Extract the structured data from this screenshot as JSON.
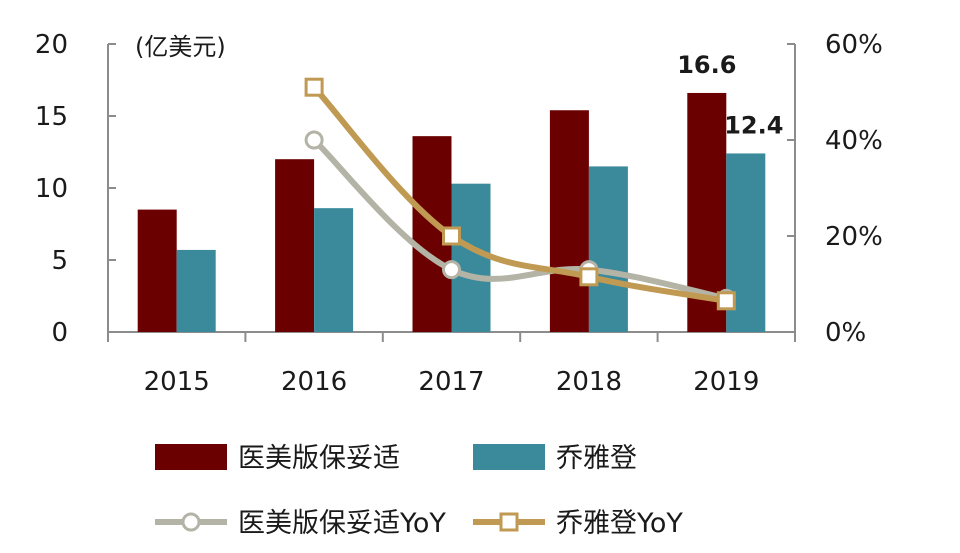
{
  "chart_data": {
    "type": "bar",
    "unit_label": "(亿美元)",
    "categories": [
      "2015",
      "2016",
      "2017",
      "2018",
      "2019"
    ],
    "y_left": {
      "min": 0,
      "max": 20,
      "ticks": [
        0,
        5,
        10,
        15,
        20
      ]
    },
    "y_right": {
      "min": 0,
      "max": 60,
      "ticks": [
        "0%",
        "20%",
        "40%",
        "60%"
      ],
      "tick_values": [
        0,
        20,
        40,
        60
      ]
    },
    "series": [
      {
        "name": "医美版保妥适",
        "kind": "bar",
        "axis": "left",
        "color": "#6b0000",
        "values": [
          8.5,
          12.0,
          13.6,
          15.4,
          16.6
        ]
      },
      {
        "name": "乔雅登",
        "kind": "bar",
        "axis": "left",
        "color": "#3a8a9c",
        "values": [
          5.7,
          8.6,
          10.3,
          11.5,
          12.4
        ]
      },
      {
        "name": "医美版保妥适YoY",
        "kind": "line",
        "axis": "right",
        "color": "#b3b3a6",
        "marker": "circle",
        "values": [
          null,
          40,
          13,
          13,
          7
        ]
      },
      {
        "name": "乔雅登YoY",
        "kind": "line",
        "axis": "right",
        "color": "#c09a52",
        "marker": "square",
        "values": [
          null,
          51,
          20,
          11.5,
          6.5
        ]
      }
    ],
    "data_labels": [
      {
        "series": 0,
        "index": 4,
        "text": "16.6"
      },
      {
        "series": 1,
        "index": 4,
        "text": "12.4"
      }
    ]
  }
}
